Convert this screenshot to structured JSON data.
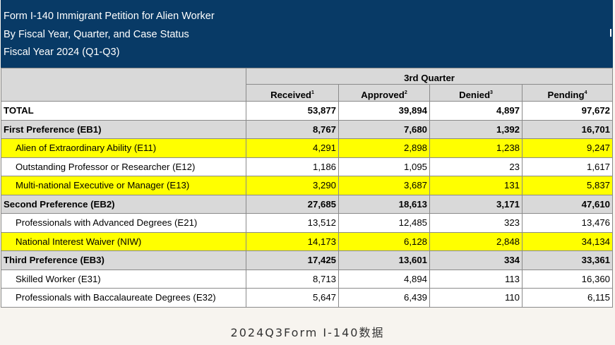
{
  "header": {
    "lines": [
      "Form I-140 Immigrant Petition for Alien Worker",
      "By Fiscal Year, Quarter, and Case Status",
      "Fiscal Year 2024 (Q1-Q3)"
    ]
  },
  "table": {
    "group_header": "3rd Quarter",
    "columns": [
      {
        "label": "Received",
        "note": "1"
      },
      {
        "label": "Approved",
        "note": "2"
      },
      {
        "label": "Denied",
        "note": "3"
      },
      {
        "label": "Pending",
        "note": "4"
      }
    ],
    "rows": [
      {
        "label": "TOTAL",
        "values": [
          "53,877",
          "39,894",
          "4,897",
          "97,672"
        ],
        "style": "total"
      },
      {
        "label": "First Preference (EB1)",
        "values": [
          "8,767",
          "7,680",
          "1,392",
          "16,701"
        ],
        "style": "category"
      },
      {
        "label": "Alien of Extraordinary Ability (E11)",
        "values": [
          "4,291",
          "2,898",
          "1,238",
          "9,247"
        ],
        "style": "highlight"
      },
      {
        "label": "Outstanding Professor or Researcher (E12)",
        "values": [
          "1,186",
          "1,095",
          "23",
          "1,617"
        ],
        "style": "sub"
      },
      {
        "label": "Multi-national Executive or Manager (E13)",
        "values": [
          "3,290",
          "3,687",
          "131",
          "5,837"
        ],
        "style": "highlight"
      },
      {
        "label": "Second Preference (EB2)",
        "values": [
          "27,685",
          "18,613",
          "3,171",
          "47,610"
        ],
        "style": "category"
      },
      {
        "label": "Professionals with Advanced Degrees (E21)",
        "values": [
          "13,512",
          "12,485",
          "323",
          "13,476"
        ],
        "style": "sub"
      },
      {
        "label": "National Interest Waiver (NIW)",
        "values": [
          "14,173",
          "6,128",
          "2,848",
          "34,134"
        ],
        "style": "highlight"
      },
      {
        "label": "Third Preference (EB3)",
        "values": [
          "17,425",
          "13,601",
          "334",
          "33,361"
        ],
        "style": "category"
      },
      {
        "label": "Skilled Worker (E31)",
        "values": [
          "8,713",
          "4,894",
          "113",
          "16,360"
        ],
        "style": "sub"
      },
      {
        "label": "Professionals with Baccalaureate Degrees (E32)",
        "values": [
          "5,647",
          "6,439",
          "110",
          "6,115"
        ],
        "style": "sub"
      }
    ]
  },
  "caption": "2024Q3Form I-140数据"
}
